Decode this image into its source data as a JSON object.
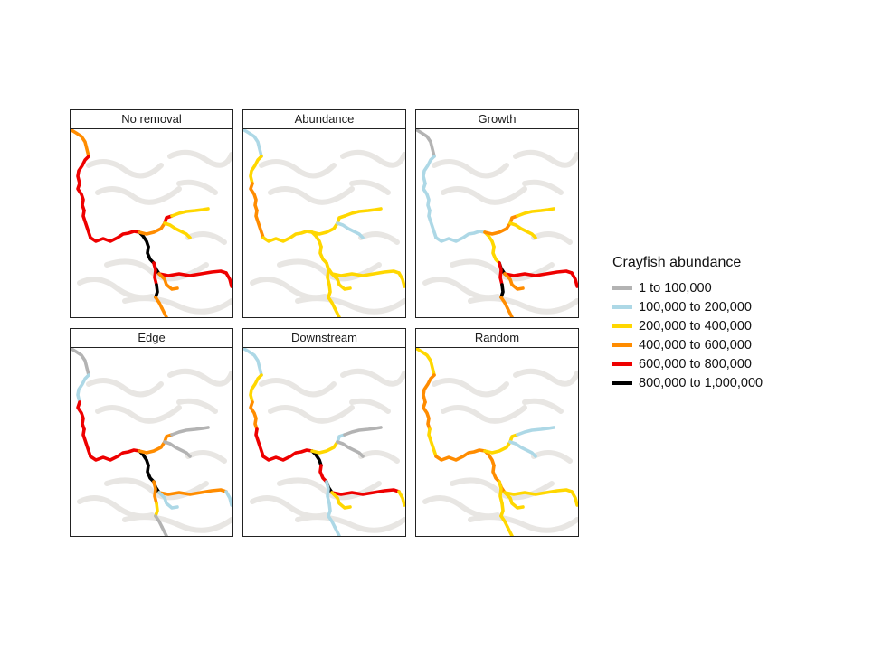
{
  "colors": {
    "1": "#b3b3b3",
    "2": "#add8e6",
    "3": "#ffd700",
    "4": "#ff8c00",
    "5": "#ee0000",
    "6": "#000000"
  },
  "legend": {
    "title": "Crayfish abundance",
    "items": [
      {
        "label": "1 to 100,000",
        "color": "#b3b3b3"
      },
      {
        "label": "100,000 to 200,000",
        "color": "#add8e6"
      },
      {
        "label": "200,000 to 400,000",
        "color": "#ffd700"
      },
      {
        "label": "400,000 to 600,000",
        "color": "#ff8c00"
      },
      {
        "label": "600,000 to 800,000",
        "color": "#ee0000"
      },
      {
        "label": "800,000 to 1,000,000",
        "color": "#000000"
      }
    ]
  },
  "panels": [
    {
      "title": "No removal",
      "classes": {
        "a": "4",
        "b": "5",
        "c": "5",
        "d": "5",
        "e": "5",
        "f": "6",
        "g": "4",
        "h": "5",
        "i": "3",
        "j": "3",
        "k": "6",
        "l": "6",
        "m": "5",
        "n": "5",
        "o": "4",
        "p": "5",
        "q": "6",
        "r": "4",
        "s": "4"
      }
    },
    {
      "title": "Abundance",
      "classes": {
        "a": "2",
        "b": "3",
        "c": "4",
        "d": "4",
        "e": "3",
        "f": "3",
        "g": "3",
        "h": "3",
        "i": "3",
        "j": "2",
        "k": "3",
        "l": "3",
        "m": "3",
        "n": "3",
        "o": "3",
        "p": "3",
        "q": "3",
        "r": "3",
        "s": "3"
      }
    },
    {
      "title": "Growth",
      "classes": {
        "a": "1",
        "b": "2",
        "c": "2",
        "d": "2",
        "e": "2",
        "f": "3",
        "g": "4",
        "h": "4",
        "i": "3",
        "j": "3",
        "k": "3",
        "l": "6",
        "m": "5",
        "n": "5",
        "o": "4",
        "p": "5",
        "q": "6",
        "r": "4",
        "s": "4"
      }
    },
    {
      "title": "Edge",
      "classes": {
        "a": "1",
        "b": "2",
        "c": "5",
        "d": "5",
        "e": "5",
        "f": "6",
        "g": "4",
        "h": "4",
        "i": "1",
        "j": "1",
        "k": "6",
        "l": "6",
        "m": "4",
        "n": "2",
        "o": "2",
        "p": "4",
        "q": "3",
        "r": "1",
        "s": "1"
      }
    },
    {
      "title": "Downstream",
      "classes": {
        "a": "2",
        "b": "3",
        "c": "4",
        "d": "5",
        "e": "5",
        "f": "6",
        "g": "3",
        "h": "2",
        "i": "1",
        "j": "1",
        "k": "5",
        "l": "6",
        "m": "5",
        "n": "3",
        "o": "3",
        "p": "2",
        "q": "2",
        "r": "2",
        "s": "2"
      }
    },
    {
      "title": "Random",
      "classes": {
        "a": "3",
        "b": "4",
        "c": "4",
        "d": "3",
        "e": "4",
        "f": "4",
        "g": "3",
        "h": "3",
        "i": "2",
        "j": "2",
        "k": "4",
        "l": "4",
        "m": "3",
        "n": "3",
        "o": "3",
        "p": "3",
        "q": "3",
        "r": "3",
        "s": "3"
      }
    }
  ]
}
